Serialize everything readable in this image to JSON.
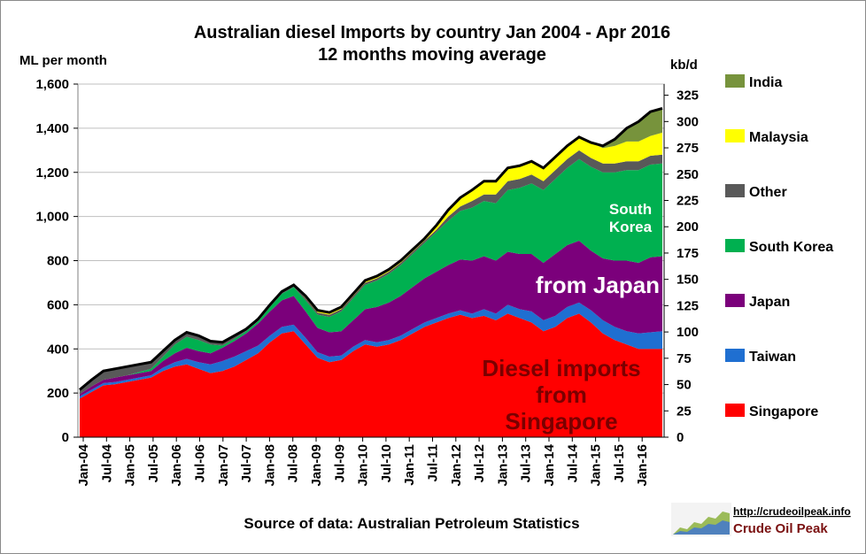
{
  "chart_data": {
    "type": "area",
    "stacked": true,
    "title_line1": "Australian diesel Imports by country Jan 2004 - Apr 2016",
    "title_line2": "12 months moving average",
    "ylabel": "ML per month",
    "y2label": "kb/d",
    "ylim": [
      0,
      1600
    ],
    "yticks": [
      "0",
      "200",
      "400",
      "600",
      "800",
      "1,000",
      "1,200",
      "1,400",
      "1,600"
    ],
    "y2lim": [
      0,
      335.6
    ],
    "y2ticks": [
      "0",
      "25",
      "50",
      "75",
      "100",
      "125",
      "150",
      "175",
      "200",
      "225",
      "250",
      "275",
      "300",
      "325"
    ],
    "xticks": [
      "Jan-04",
      "Jul-04",
      "Jan-05",
      "Jul-05",
      "Jan-06",
      "Jul-06",
      "Jan-07",
      "Jul-07",
      "Jan-08",
      "Jul-08",
      "Jan-09",
      "Jul-09",
      "Jan-10",
      "Jul-10",
      "Jan-11",
      "Jul-11",
      "Jan-12",
      "Jul-12",
      "Jan-13",
      "Jul-13",
      "Jan-14",
      "Jul-14",
      "Jan-15",
      "Jul-15",
      "Jan-16"
    ],
    "x": [
      "Jan-04",
      "Apr-04",
      "Jul-04",
      "Oct-04",
      "Jan-05",
      "Apr-05",
      "Jul-05",
      "Oct-05",
      "Jan-06",
      "Apr-06",
      "Jul-06",
      "Oct-06",
      "Jan-07",
      "Apr-07",
      "Jul-07",
      "Oct-07",
      "Jan-08",
      "Apr-08",
      "Jul-08",
      "Oct-08",
      "Jan-09",
      "Apr-09",
      "Jul-09",
      "Oct-09",
      "Jan-10",
      "Apr-10",
      "Jul-10",
      "Oct-10",
      "Jan-11",
      "Apr-11",
      "Jul-11",
      "Oct-11",
      "Jan-12",
      "Apr-12",
      "Jul-12",
      "Oct-12",
      "Jan-13",
      "Apr-13",
      "Jul-13",
      "Oct-13",
      "Jan-14",
      "Apr-14",
      "Jul-14",
      "Oct-14",
      "Jan-15",
      "Apr-15",
      "Jul-15",
      "Oct-15",
      "Jan-16",
      "Apr-16"
    ],
    "series": [
      {
        "name": "Singapore",
        "color": "#ff0000",
        "values": [
          175,
          205,
          235,
          240,
          250,
          260,
          270,
          300,
          320,
          330,
          310,
          290,
          300,
          320,
          350,
          380,
          430,
          470,
          480,
          420,
          360,
          340,
          350,
          390,
          420,
          410,
          420,
          440,
          470,
          500,
          520,
          540,
          555,
          540,
          550,
          530,
          560,
          540,
          520,
          480,
          500,
          540,
          560,
          520,
          470,
          440,
          420,
          400,
          400,
          400
        ]
      },
      {
        "name": "Taiwan",
        "color": "#1f6fd1",
        "values": [
          10,
          10,
          10,
          10,
          10,
          10,
          10,
          15,
          20,
          25,
          30,
          40,
          45,
          45,
          40,
          35,
          30,
          30,
          30,
          30,
          25,
          25,
          20,
          20,
          20,
          20,
          20,
          20,
          20,
          20,
          20,
          20,
          20,
          20,
          30,
          30,
          40,
          40,
          50,
          50,
          50,
          50,
          50,
          55,
          60,
          60,
          60,
          70,
          75,
          80
        ]
      },
      {
        "name": "Japan",
        "color": "#7b007b",
        "values": [
          10,
          15,
          15,
          20,
          20,
          20,
          20,
          30,
          40,
          50,
          50,
          50,
          60,
          70,
          80,
          100,
          110,
          120,
          130,
          120,
          110,
          110,
          110,
          120,
          140,
          160,
          170,
          180,
          190,
          200,
          210,
          220,
          230,
          240,
          240,
          240,
          240,
          250,
          260,
          260,
          280,
          280,
          280,
          270,
          280,
          300,
          320,
          320,
          340,
          340
        ]
      },
      {
        "name": "South Korea",
        "color": "#00b050",
        "values": [
          0,
          0,
          0,
          0,
          0,
          5,
          10,
          20,
          40,
          50,
          50,
          40,
          10,
          10,
          10,
          10,
          20,
          30,
          40,
          50,
          60,
          70,
          90,
          100,
          110,
          120,
          130,
          140,
          150,
          160,
          180,
          200,
          220,
          240,
          250,
          260,
          280,
          300,
          320,
          330,
          340,
          350,
          370,
          380,
          390,
          400,
          410,
          420,
          420,
          420
        ]
      },
      {
        "name": "Other",
        "color": "#595959",
        "values": [
          20,
          30,
          40,
          40,
          40,
          35,
          30,
          25,
          20,
          20,
          20,
          15,
          15,
          15,
          10,
          10,
          10,
          10,
          10,
          10,
          10,
          10,
          10,
          10,
          10,
          10,
          10,
          10,
          10,
          10,
          10,
          20,
          20,
          30,
          30,
          40,
          40,
          40,
          40,
          40,
          40,
          40,
          40,
          40,
          40,
          40,
          40,
          40,
          40,
          40
        ]
      },
      {
        "name": "Malaysia",
        "color": "#ffff00",
        "values": [
          0,
          0,
          0,
          0,
          0,
          0,
          0,
          0,
          0,
          0,
          0,
          0,
          0,
          0,
          0,
          0,
          0,
          0,
          0,
          10,
          10,
          10,
          10,
          10,
          10,
          10,
          10,
          10,
          10,
          10,
          20,
          30,
          40,
          50,
          60,
          60,
          60,
          60,
          60,
          60,
          60,
          60,
          60,
          70,
          70,
          80,
          90,
          90,
          90,
          100
        ]
      },
      {
        "name": "India",
        "color": "#77933c",
        "values": [
          0,
          0,
          0,
          0,
          0,
          0,
          0,
          0,
          0,
          0,
          0,
          0,
          0,
          0,
          0,
          0,
          0,
          0,
          0,
          0,
          0,
          0,
          0,
          0,
          0,
          0,
          0,
          0,
          0,
          0,
          0,
          0,
          0,
          0,
          0,
          0,
          0,
          0,
          0,
          0,
          0,
          0,
          0,
          0,
          10,
          30,
          60,
          90,
          110,
          110
        ]
      }
    ],
    "legend_order": [
      "India",
      "Malaysia",
      "Other",
      "South Korea",
      "Japan",
      "Taiwan",
      "Singapore"
    ],
    "annotations": {
      "south_korea_line1": "South",
      "south_korea_line2": "Korea",
      "japan": "from Japan",
      "singapore_line1": "Diesel imports",
      "singapore_line2": "from",
      "singapore_line3": "Singapore"
    },
    "source": "Source of data: Australian Petroleum Statistics",
    "logo_url": "http://crudeoilpeak.info",
    "logo_name": "Crude Oil Peak"
  }
}
